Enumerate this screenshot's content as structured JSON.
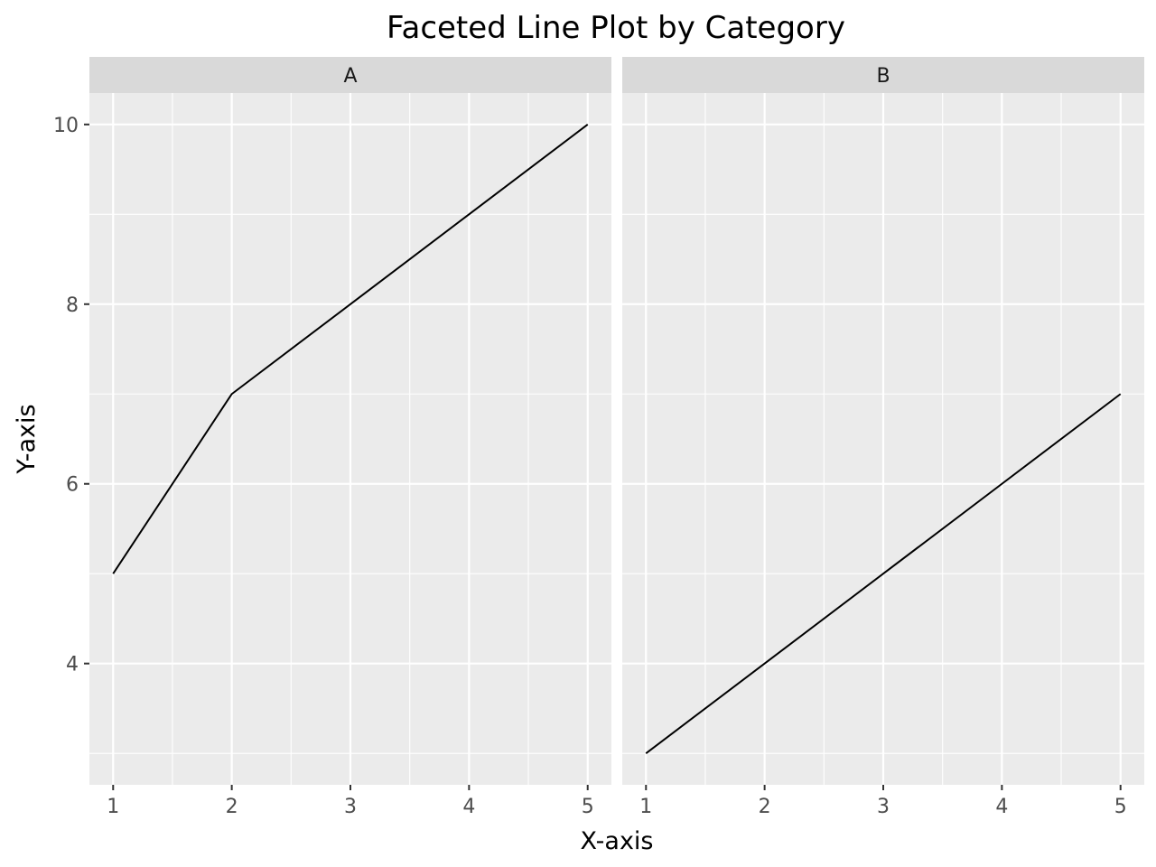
{
  "chart_data": {
    "type": "line",
    "title": "Faceted Line Plot by Category",
    "xlabel": "X-axis",
    "ylabel": "Y-axis",
    "xlim": [
      0.8,
      5.2
    ],
    "ylim": [
      2.65,
      10.35
    ],
    "x_ticks": [
      1,
      2,
      3,
      4,
      5
    ],
    "y_ticks": [
      4,
      6,
      8,
      10
    ],
    "x_minor": [
      1.5,
      2.5,
      3.5,
      4.5
    ],
    "y_minor": [
      3,
      5,
      7,
      9
    ],
    "grid": true,
    "colors": {
      "panel_bg": "#ebebeb",
      "strip_bg": "#d9d9d9",
      "grid": "#ffffff",
      "line": "#000000",
      "tick": "#333333"
    },
    "facets": [
      {
        "label": "A",
        "x": [
          1,
          2,
          3,
          4,
          5
        ],
        "y": [
          5,
          7,
          8,
          9,
          10
        ]
      },
      {
        "label": "B",
        "x": [
          1,
          2,
          3,
          4,
          5
        ],
        "y": [
          3,
          4,
          5,
          6,
          7
        ]
      }
    ]
  }
}
